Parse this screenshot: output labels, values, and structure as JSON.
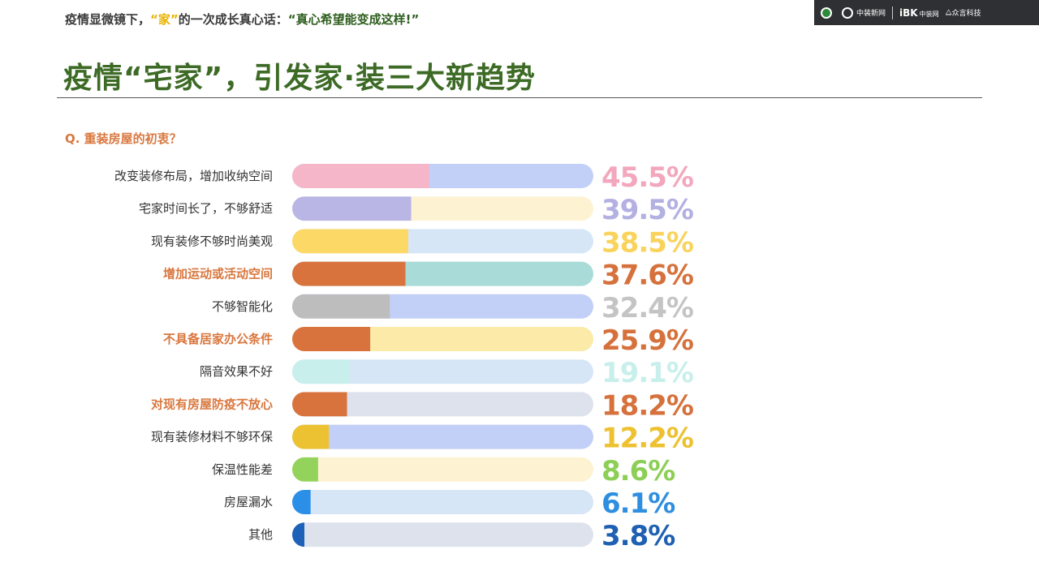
{
  "header": {
    "tagline_prefix": "疫情显微镜下，",
    "tagline_home": "“家”",
    "tagline_middle": "的一次成长真心话：",
    "tagline_quote": "“真心希望能变成这样!”",
    "main_title": "疫情“宅家”，引发家·装三大新趋势"
  },
  "logos": {
    "brand_two": "中装新网",
    "brand_three": "iBK",
    "brand_three_sub": "中装网",
    "brand_four": "众言科技"
  },
  "question": "Q. 重装房屋的初衷？",
  "chart_data": {
    "type": "bar",
    "orientation": "horizontal",
    "title": "",
    "xlim": [
      0,
      100
    ],
    "value_suffix": "%",
    "categories": [
      "改变装修布局，增加收纳空间",
      "宅家时间长了，不够舒适",
      "现有装修不够时尚美观",
      "增加运动或活动空间",
      "不够智能化",
      "不具备居家办公条件",
      "隔音效果不好",
      "对现有房屋防疫不放心",
      "现有装修材料不够环保",
      "保温性能差",
      "房屋漏水",
      "其他"
    ],
    "values": [
      45.5,
      39.5,
      38.5,
      37.6,
      32.4,
      25.9,
      19.1,
      18.2,
      12.2,
      8.6,
      6.1,
      3.8
    ],
    "value_labels": [
      "45.5%",
      "39.5%",
      "38.5%",
      "37.6%",
      "32.4%",
      "25.9%",
      "19.1%",
      "18.2%",
      "12.2%",
      "8.6%",
      "6.1%",
      "3.8%"
    ],
    "highlighted": [
      false,
      false,
      false,
      true,
      false,
      true,
      false,
      true,
      false,
      false,
      false,
      false
    ],
    "colors": {
      "fill": [
        "#f4b6c8",
        "#b9b6e6",
        "#fcd867",
        "#d9733e",
        "#bdbdbd",
        "#d9733e",
        "#c8efeb",
        "#d9733e",
        "#ecc232",
        "#93d35c",
        "#2b8fe8",
        "#1d62b8"
      ],
      "track": [
        "#c2cff7",
        "#fdf2d2",
        "#d6e6f7",
        "#a9dcd8",
        "#c2cff7",
        "#fbeaa8",
        "#d6e6f7",
        "#dde2ec",
        "#c2cff7",
        "#fdf2d2",
        "#d6e6f7",
        "#dde2ec"
      ],
      "label": [
        "#f2a7bd",
        "#b3b0e2",
        "#f9d35c",
        "#d6713c",
        "#c4c4c4",
        "#d6713c",
        "#c8efeb",
        "#d6713c",
        "#edc130",
        "#8dcf56",
        "#2e8ee0",
        "#1f60b2"
      ],
      "category_normal": "#333333",
      "category_highlight": "#d9773e"
    }
  }
}
